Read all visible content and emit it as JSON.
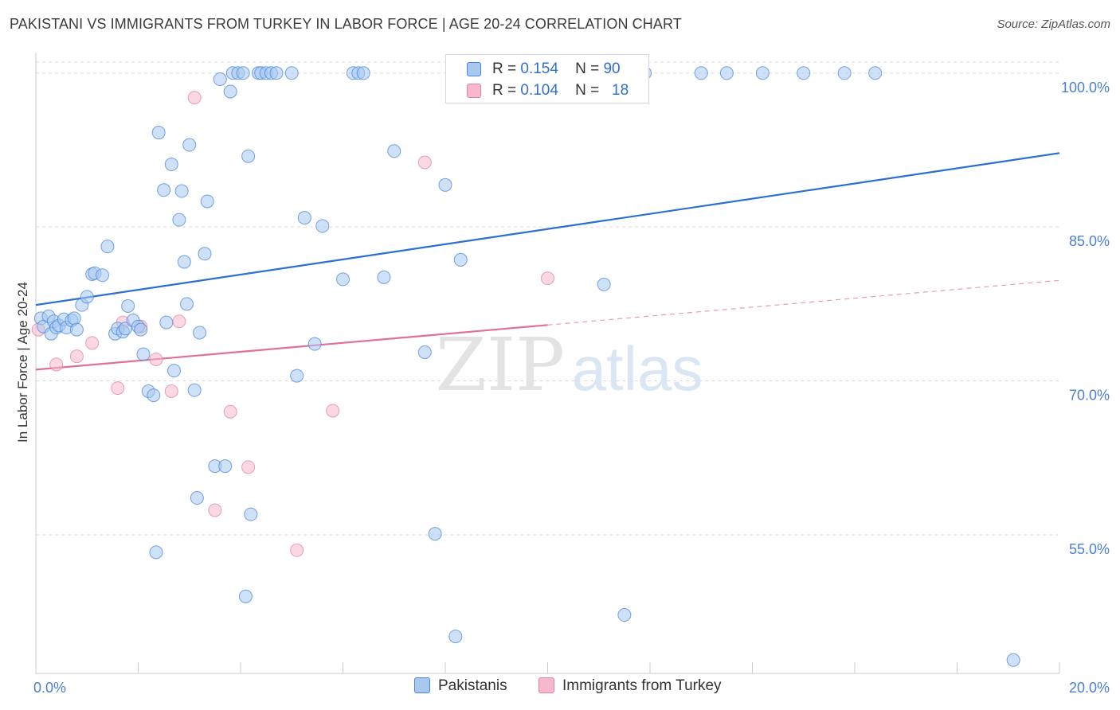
{
  "title": "PAKISTANI VS IMMIGRANTS FROM TURKEY IN LABOR FORCE | AGE 20-24 CORRELATION CHART",
  "source": "Source: ZipAtlas.com",
  "watermark": {
    "zip": "ZIP",
    "atlas": "atlas"
  },
  "legend": {
    "r_label": "R =",
    "n_label": "N =",
    "rows": [
      {
        "r": "0.154",
        "n": "90"
      },
      {
        "r": "0.104",
        "n": "18"
      }
    ]
  },
  "colors": {
    "pakistanis_fill": "#a8c8f0",
    "pakistanis_stroke": "#4a86d8",
    "pakistanis_line": "#2a6fd1",
    "turkey_fill": "#f7b8cc",
    "turkey_stroke": "#e0829f",
    "turkey_line": "#e0709a",
    "grid": "#dcdcdc",
    "tick_label": "#4a7fd4"
  },
  "chart_data": {
    "type": "scatter",
    "title": "PAKISTANI VS IMMIGRANTS FROM TURKEY IN LABOR FORCE | AGE 20-24 CORRELATION CHART",
    "xlabel": "",
    "ylabel": "In Labor Force | Age 20-24",
    "xlim": [
      0,
      20
    ],
    "ylim": [
      41.5,
      102
    ],
    "x_tick_labels": [
      "0.0%",
      "20.0%"
    ],
    "y_ticks": [
      55,
      70,
      85,
      100
    ],
    "y_tick_labels": [
      "55.0%",
      "70.0%",
      "85.0%",
      "100.0%"
    ],
    "grid": true,
    "legend_position": "top-center",
    "series": [
      {
        "name": "Pakistanis",
        "r": 0.154,
        "n": 90,
        "trend": {
          "x": [
            0,
            20
          ],
          "y": [
            77.4,
            92.2
          ]
        },
        "points": [
          [
            0.1,
            76.1
          ],
          [
            0.15,
            75.3
          ],
          [
            0.25,
            76.3
          ],
          [
            0.3,
            74.6
          ],
          [
            0.35,
            75.8
          ],
          [
            0.4,
            75.2
          ],
          [
            0.45,
            75.4
          ],
          [
            0.55,
            76.0
          ],
          [
            0.6,
            75.2
          ],
          [
            0.7,
            75.9
          ],
          [
            0.75,
            76.1
          ],
          [
            0.8,
            75.0
          ],
          [
            0.9,
            77.4
          ],
          [
            1.0,
            78.2
          ],
          [
            1.1,
            80.4
          ],
          [
            1.15,
            80.5
          ],
          [
            1.3,
            80.3
          ],
          [
            1.4,
            83.1
          ],
          [
            1.55,
            74.6
          ],
          [
            1.6,
            75.1
          ],
          [
            1.7,
            74.8
          ],
          [
            1.75,
            75.1
          ],
          [
            1.8,
            77.3
          ],
          [
            1.9,
            75.9
          ],
          [
            2.0,
            75.3
          ],
          [
            2.05,
            75.0
          ],
          [
            2.1,
            72.6
          ],
          [
            2.2,
            69.0
          ],
          [
            2.3,
            68.6
          ],
          [
            2.35,
            53.3
          ],
          [
            2.4,
            94.2
          ],
          [
            2.5,
            88.6
          ],
          [
            2.55,
            75.7
          ],
          [
            2.65,
            91.1
          ],
          [
            2.7,
            71.0
          ],
          [
            2.8,
            85.7
          ],
          [
            2.85,
            88.5
          ],
          [
            2.9,
            81.6
          ],
          [
            2.95,
            77.5
          ],
          [
            3.0,
            93.0
          ],
          [
            3.1,
            69.1
          ],
          [
            3.15,
            58.6
          ],
          [
            3.2,
            74.7
          ],
          [
            3.3,
            82.4
          ],
          [
            3.35,
            87.5
          ],
          [
            3.5,
            61.7
          ],
          [
            3.6,
            99.4
          ],
          [
            3.7,
            61.7
          ],
          [
            3.8,
            98.2
          ],
          [
            3.85,
            100.0
          ],
          [
            3.95,
            100.0
          ],
          [
            4.05,
            100.0
          ],
          [
            4.1,
            49.0
          ],
          [
            4.15,
            91.9
          ],
          [
            4.2,
            57.0
          ],
          [
            4.35,
            100.0
          ],
          [
            4.4,
            100.0
          ],
          [
            4.5,
            100.0
          ],
          [
            4.6,
            100.0
          ],
          [
            4.7,
            100.0
          ],
          [
            5.0,
            100.0
          ],
          [
            5.1,
            70.5
          ],
          [
            5.25,
            85.9
          ],
          [
            5.45,
            73.6
          ],
          [
            5.6,
            85.1
          ],
          [
            6.0,
            79.9
          ],
          [
            6.2,
            100.0
          ],
          [
            6.3,
            100.0
          ],
          [
            6.4,
            100.0
          ],
          [
            6.8,
            80.1
          ],
          [
            7.0,
            92.4
          ],
          [
            7.6,
            72.8
          ],
          [
            7.8,
            55.1
          ],
          [
            8.0,
            89.1
          ],
          [
            8.2,
            45.1
          ],
          [
            8.3,
            81.8
          ],
          [
            9.2,
            100.0
          ],
          [
            9.4,
            100.0
          ],
          [
            9.6,
            100.0
          ],
          [
            10.6,
            100.0
          ],
          [
            11.1,
            79.4
          ],
          [
            11.5,
            47.2
          ],
          [
            11.9,
            100.0
          ],
          [
            13.0,
            100.0
          ],
          [
            13.5,
            100.0
          ],
          [
            14.2,
            100.0
          ],
          [
            15.0,
            100.0
          ],
          [
            15.8,
            100.0
          ],
          [
            16.4,
            100.0
          ],
          [
            19.1,
            42.8
          ]
        ]
      },
      {
        "name": "Immigrants from Turkey",
        "r": 0.104,
        "n": 18,
        "trend": {
          "x": [
            0,
            20
          ],
          "y": [
            71.1,
            79.8
          ]
        },
        "trend_solid_until": 10.0,
        "points": [
          [
            0.05,
            75.0
          ],
          [
            0.4,
            71.6
          ],
          [
            0.8,
            72.4
          ],
          [
            1.1,
            73.7
          ],
          [
            1.6,
            69.3
          ],
          [
            1.7,
            75.7
          ],
          [
            2.05,
            75.3
          ],
          [
            2.35,
            72.1
          ],
          [
            2.65,
            69.0
          ],
          [
            2.8,
            75.8
          ],
          [
            3.1,
            97.6
          ],
          [
            3.5,
            57.4
          ],
          [
            3.8,
            67.0
          ],
          [
            4.15,
            61.6
          ],
          [
            5.1,
            53.5
          ],
          [
            5.8,
            67.1
          ],
          [
            7.6,
            91.3
          ],
          [
            10.0,
            80.0
          ]
        ]
      }
    ]
  }
}
